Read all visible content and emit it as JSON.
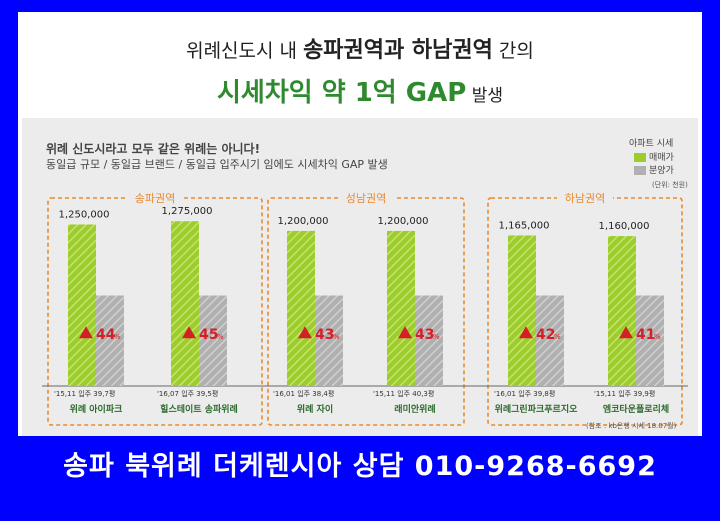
{
  "headline": {
    "line1_prefix": "위례신도시 내 ",
    "line1_bold": "송파권역과 하남권역",
    "line1_suffix": " 간의",
    "line2_bold": "시세차익 약 1억 GAP",
    "line2_suffix": " 발생"
  },
  "notes": {
    "line1": "위례 신도시라고 모두 같은 위례는 아니다!",
    "line2": "동일급 규모 / 동일급 브랜드 / 동일급 입주시기 임에도 시세차익 GAP 발생"
  },
  "legend": {
    "title": "아파트 시세",
    "items": [
      {
        "label": "매매가",
        "color": "#9ccd2c"
      },
      {
        "label": "분양가",
        "color": "#b0b0b0"
      }
    ]
  },
  "unit": "(단위: 천원)",
  "source": "(참조 : kb은행 시세 18.07월)",
  "caption": "송파 북위례 더케렌시아 상담 010-9268-6692",
  "colors": {
    "sale": "#9ccd2c",
    "presale": "#b0b0b0",
    "group_border": "#e98a2e",
    "group_label": "#e98a2e",
    "arrow": "#d41f26",
    "name_text": "#2d6a2d"
  },
  "chart_data": {
    "type": "bar",
    "groups": [
      "송파권역",
      "성남권역",
      "하남권역"
    ],
    "categories": [
      "위례 아이파크",
      "힐스테이트 송파위례",
      "위례 자이",
      "래미안위례",
      "위례그린파크푸르지오",
      "엠코타운플로리체"
    ],
    "group_of_category": [
      0,
      0,
      1,
      1,
      2,
      2
    ],
    "info": [
      "'15,11 입주 39,7평",
      "'16,07 입주 39,5평",
      "'16,01 입주 38,4평",
      "'15,11 입주 40,3평",
      "'16,01 입주 39,8평",
      "'15,11 입주 39,9평"
    ],
    "series": [
      {
        "name": "매매가",
        "values": [
          1250000,
          1275000,
          1200000,
          1200000,
          1165000,
          1160000
        ]
      },
      {
        "name": "분양가",
        "values": [
          700000,
          700000,
          700000,
          700000,
          700000,
          700000
        ]
      }
    ],
    "value_labels": [
      "1,250,000",
      "1,275,000",
      "1,200,000",
      "1,200,000",
      "1,165,000",
      "1,160,000"
    ],
    "increase_pct": [
      "44",
      "45",
      "43",
      "43",
      "42",
      "41"
    ],
    "pct_unit": "%",
    "ylim": [
      0,
      1300000
    ]
  }
}
